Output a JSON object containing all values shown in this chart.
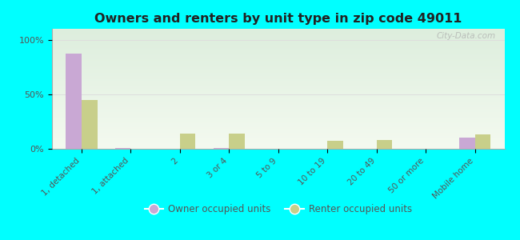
{
  "title": "Owners and renters by unit type in zip code 49011",
  "categories": [
    "1, detached",
    "1, attached",
    "2",
    "3 or 4",
    "5 to 9",
    "10 to 19",
    "20 to 49",
    "50 or more",
    "Mobile home"
  ],
  "owner_values": [
    87,
    1,
    0,
    1,
    0,
    0,
    0,
    0,
    10
  ],
  "renter_values": [
    45,
    0,
    14,
    14,
    0,
    7,
    8,
    0,
    13
  ],
  "owner_color": "#c9a8d4",
  "renter_color": "#c8cf8a",
  "background_color": "#00ffff",
  "plot_bg_top": "#ddeedd",
  "plot_bg_bottom": "#f4faf0",
  "grid_color": "#cccccc",
  "yticks": [
    0,
    50,
    100
  ],
  "ylim": [
    0,
    110
  ],
  "bar_width": 0.32,
  "legend_owner": "Owner occupied units",
  "legend_renter": "Renter occupied units",
  "watermark": "City-Data.com"
}
